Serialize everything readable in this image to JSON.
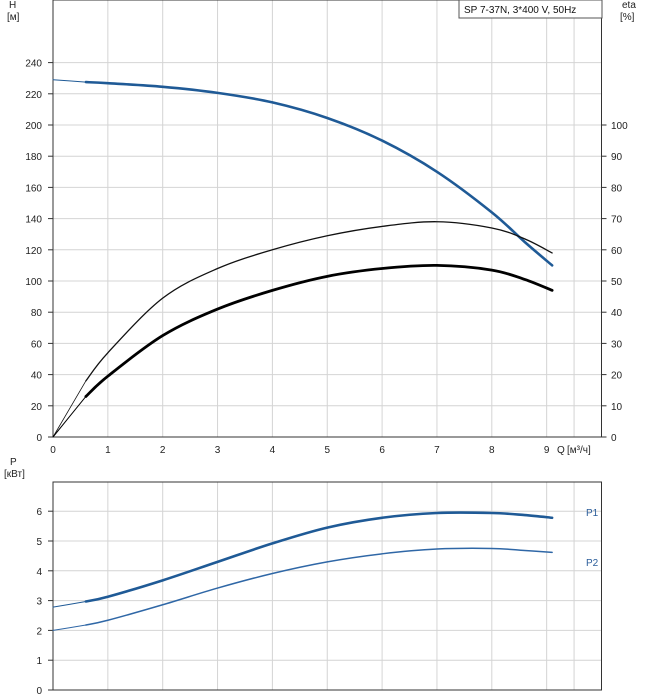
{
  "chart_data": [
    {
      "type": "line",
      "title": "SP 7-37N, 3*400 V, 50Hz",
      "ylabel": "H",
      "yunit": "[м]",
      "xlabel": "Q",
      "xunit": "[м³/ч]",
      "y2label": "eta",
      "y2unit": "[%]",
      "xlim": [
        0,
        10
      ],
      "ylim": [
        0,
        260
      ],
      "y2lim": [
        0,
        130
      ],
      "xticks": [
        0,
        1,
        2,
        3,
        4,
        5,
        6,
        7,
        8,
        9
      ],
      "yticks": [
        0,
        20,
        40,
        60,
        80,
        100,
        120,
        140,
        160,
        180,
        200,
        220,
        240
      ],
      "y2ticks": [
        0,
        10,
        20,
        30,
        40,
        50,
        60,
        70,
        80,
        90,
        100
      ],
      "grid": true,
      "series": [
        {
          "axis": "left",
          "color": "#1f5a96",
          "x": [
            0,
            0.6,
            1,
            2,
            3,
            4,
            5,
            6,
            7,
            8,
            8.6,
            9.1
          ],
          "y": [
            229,
            227.5,
            226.8,
            224.5,
            220.6,
            214.5,
            204.5,
            190,
            170,
            144,
            125,
            110
          ]
        },
        {
          "axis": "right",
          "color": "#111111",
          "x": [
            0,
            0.6,
            1,
            2,
            3,
            4,
            5,
            6,
            7,
            8,
            8.6,
            9.1
          ],
          "y": [
            0,
            18,
            27,
            44.5,
            54,
            60,
            64.5,
            67.5,
            69,
            67,
            63.5,
            59
          ]
        },
        {
          "axis": "right",
          "color": "#000000",
          "x": [
            0,
            0.6,
            1,
            2,
            3,
            4,
            5,
            6,
            7,
            8,
            8.6,
            9.1
          ],
          "y": [
            0,
            13,
            19.5,
            32.5,
            41,
            47,
            51.5,
            54,
            55,
            53.5,
            50.5,
            47
          ]
        }
      ]
    },
    {
      "type": "line",
      "ylabel": "P",
      "yunit": "[кВт]",
      "xlim": [
        0,
        10
      ],
      "ylim": [
        0,
        7
      ],
      "yticks": [
        0,
        1,
        2,
        3,
        4,
        5,
        6
      ],
      "grid": true,
      "series": [
        {
          "name": "P1",
          "color": "#1f5a96",
          "x": [
            0,
            0.6,
            1,
            2,
            3,
            4,
            5,
            6,
            7,
            8,
            8.6,
            9.1
          ],
          "y": [
            2.78,
            2.97,
            3.13,
            3.68,
            4.3,
            4.92,
            5.45,
            5.78,
            5.94,
            5.94,
            5.87,
            5.78
          ]
        },
        {
          "name": "P2",
          "color": "#2f67a6",
          "x": [
            0,
            0.6,
            1,
            2,
            3,
            4,
            5,
            6,
            7,
            8,
            8.6,
            9.1
          ],
          "y": [
            2.0,
            2.18,
            2.34,
            2.86,
            3.42,
            3.91,
            4.3,
            4.57,
            4.73,
            4.75,
            4.68,
            4.62
          ]
        }
      ]
    }
  ]
}
